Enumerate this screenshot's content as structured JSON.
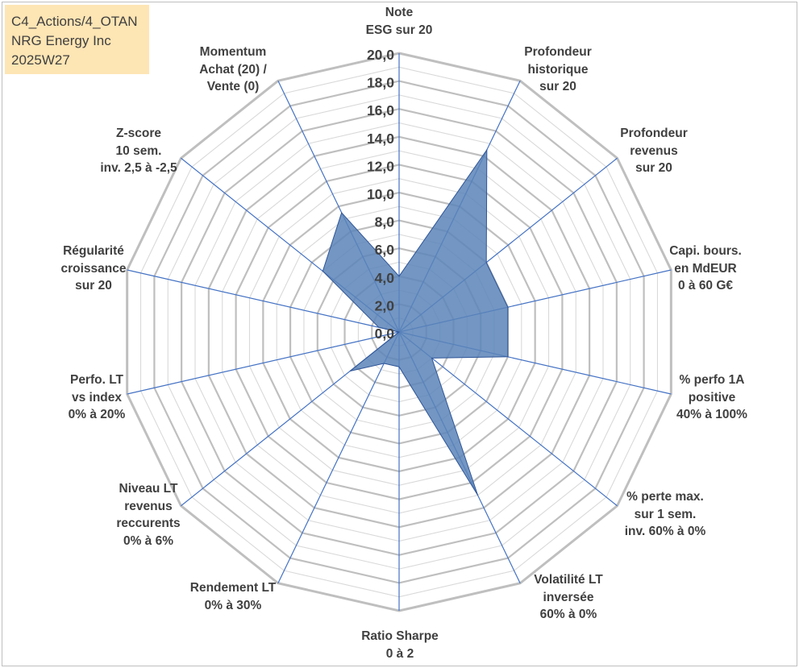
{
  "info_box": {
    "line1": "C4_Actions/4_OTAN",
    "line2": "NRG Energy Inc",
    "line3": "2025W27"
  },
  "colors": {
    "grid_outer": "#bfbfbf",
    "grid_inner": "#d9d9d9",
    "spoke": "#4472c4",
    "fill": "#5b84b8",
    "stroke": "#2f5597",
    "text": "#404040"
  },
  "chart_data": {
    "type": "radar",
    "title": "",
    "rmin": 0,
    "rmax": 20,
    "tick_step": 1,
    "tick_labels": [
      "0,0",
      "2,0",
      "4,0",
      "6,0",
      "8,0",
      "10,0",
      "12,0",
      "14,0",
      "16,0",
      "18,0",
      "20,0"
    ],
    "categories": [
      [
        "Note",
        "ESG sur 20"
      ],
      [
        "Profondeur",
        "historique",
        "sur 20"
      ],
      [
        "Profondeur",
        "revenus",
        "sur 20"
      ],
      [
        "Capi. bours.",
        "en MdEUR",
        "0 à 60 G€"
      ],
      [
        "% perfo 1A",
        "positive",
        "40% à 100%"
      ],
      [
        "% perte max.",
        "sur 1 sem.",
        "inv. 60% à 0%"
      ],
      [
        "Volatilité LT",
        "inversée",
        "60% à 0%"
      ],
      [
        "Ratio Sharpe",
        "0 à 2"
      ],
      [
        "Rendement LT",
        "0% à 30%"
      ],
      [
        "Niveau LT",
        "revenus",
        "reccurents",
        "0% à 6%"
      ],
      [
        "Perfo. LT",
        "vs index",
        "0% à 20%"
      ],
      [
        "Régularité",
        "croissance",
        "sur 20"
      ],
      [
        "Z-score",
        "10 sem.",
        "inv. 2,5 à -2,5"
      ],
      [
        "Momentum",
        "Achat (20) /",
        "Vente (0)"
      ]
    ],
    "series": [
      {
        "values": [
          4,
          14.5,
          8,
          8,
          8,
          3,
          13,
          2.5,
          2.5,
          4.5,
          0,
          1.5,
          7,
          9.5
        ]
      }
    ]
  }
}
